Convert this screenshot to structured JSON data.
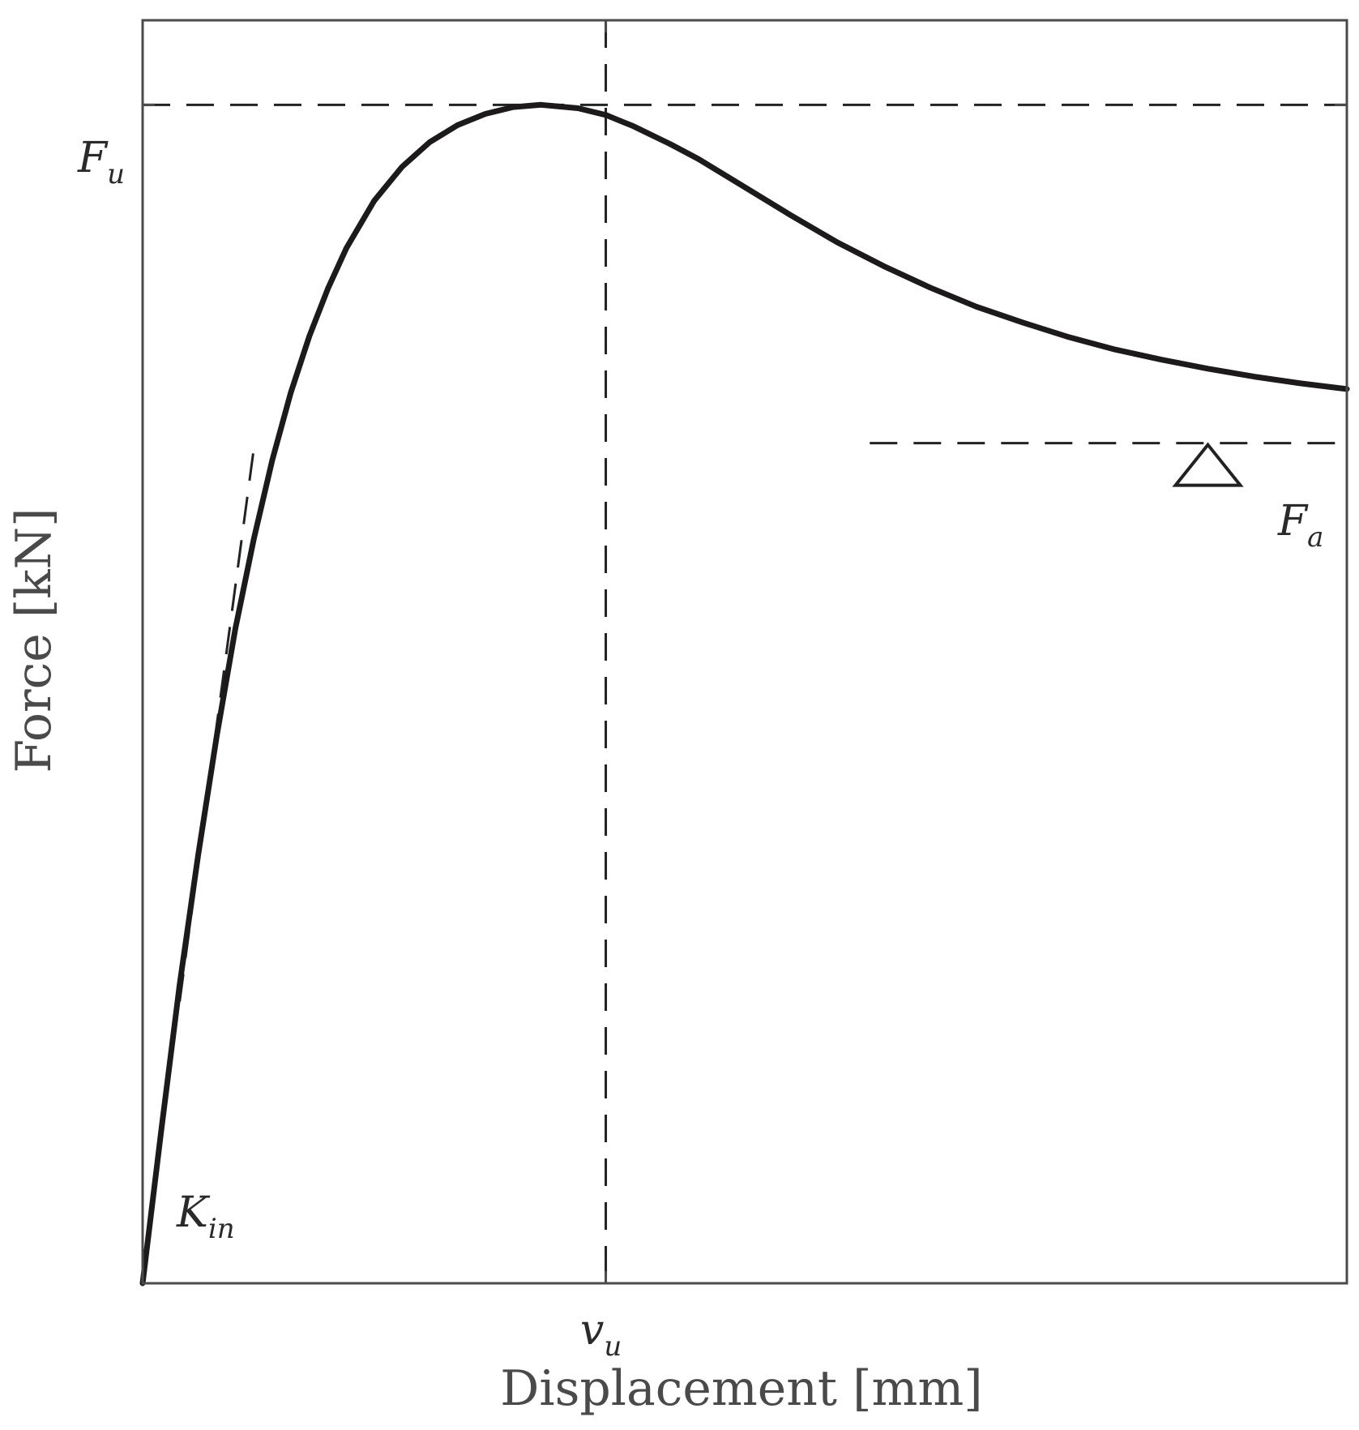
{
  "chart_data": {
    "type": "line",
    "title": "",
    "xlabel": "Displacement [mm]",
    "ylabel": "Force [kN]",
    "xlim": [
      0,
      13
    ],
    "ylim": [
      0,
      11.2
    ],
    "grid": false,
    "legend": "none",
    "series": [
      {
        "x": [
          0,
          0.2,
          0.4,
          0.6,
          0.8,
          1.0,
          1.2,
          1.4,
          1.6,
          1.8,
          2.0,
          2.2,
          2.5,
          2.8,
          3.1,
          3.4,
          3.7,
          4.0,
          4.3,
          4.7,
          5.0,
          5.3,
          5.7,
          6.0,
          6.5,
          7.0,
          7.5,
          8.0,
          8.5,
          9.0,
          9.5,
          10.0,
          10.5,
          11.0,
          11.5,
          12.0,
          12.5,
          13.0
        ],
        "y": [
          0,
          1.35,
          2.65,
          3.8,
          4.85,
          5.8,
          6.6,
          7.3,
          7.9,
          8.4,
          8.82,
          9.18,
          9.6,
          9.9,
          10.12,
          10.27,
          10.37,
          10.43,
          10.45,
          10.42,
          10.36,
          10.26,
          10.1,
          9.97,
          9.72,
          9.47,
          9.23,
          9.02,
          8.83,
          8.66,
          8.52,
          8.39,
          8.28,
          8.19,
          8.11,
          8.04,
          7.98,
          7.93
        ]
      }
    ],
    "reference_lines": {
      "Fu": 10.45,
      "vu": 5.0,
      "Fa": 7.45,
      "Fa_x_start": 7.85,
      "kin_tangent": {
        "x": [
          0.4,
          1.2
        ],
        "y": [
          2.5,
          7.4
        ]
      }
    },
    "marker": {
      "shape": "triangle",
      "x": 11.5,
      "y": 7.45
    },
    "annotations": {
      "Fu": {
        "base": "F",
        "sub": "u"
      },
      "vu": {
        "base": "v",
        "sub": "u"
      },
      "Fa": {
        "base": "F",
        "sub": "a"
      },
      "Kin": {
        "base": "K",
        "sub": "in"
      }
    }
  }
}
